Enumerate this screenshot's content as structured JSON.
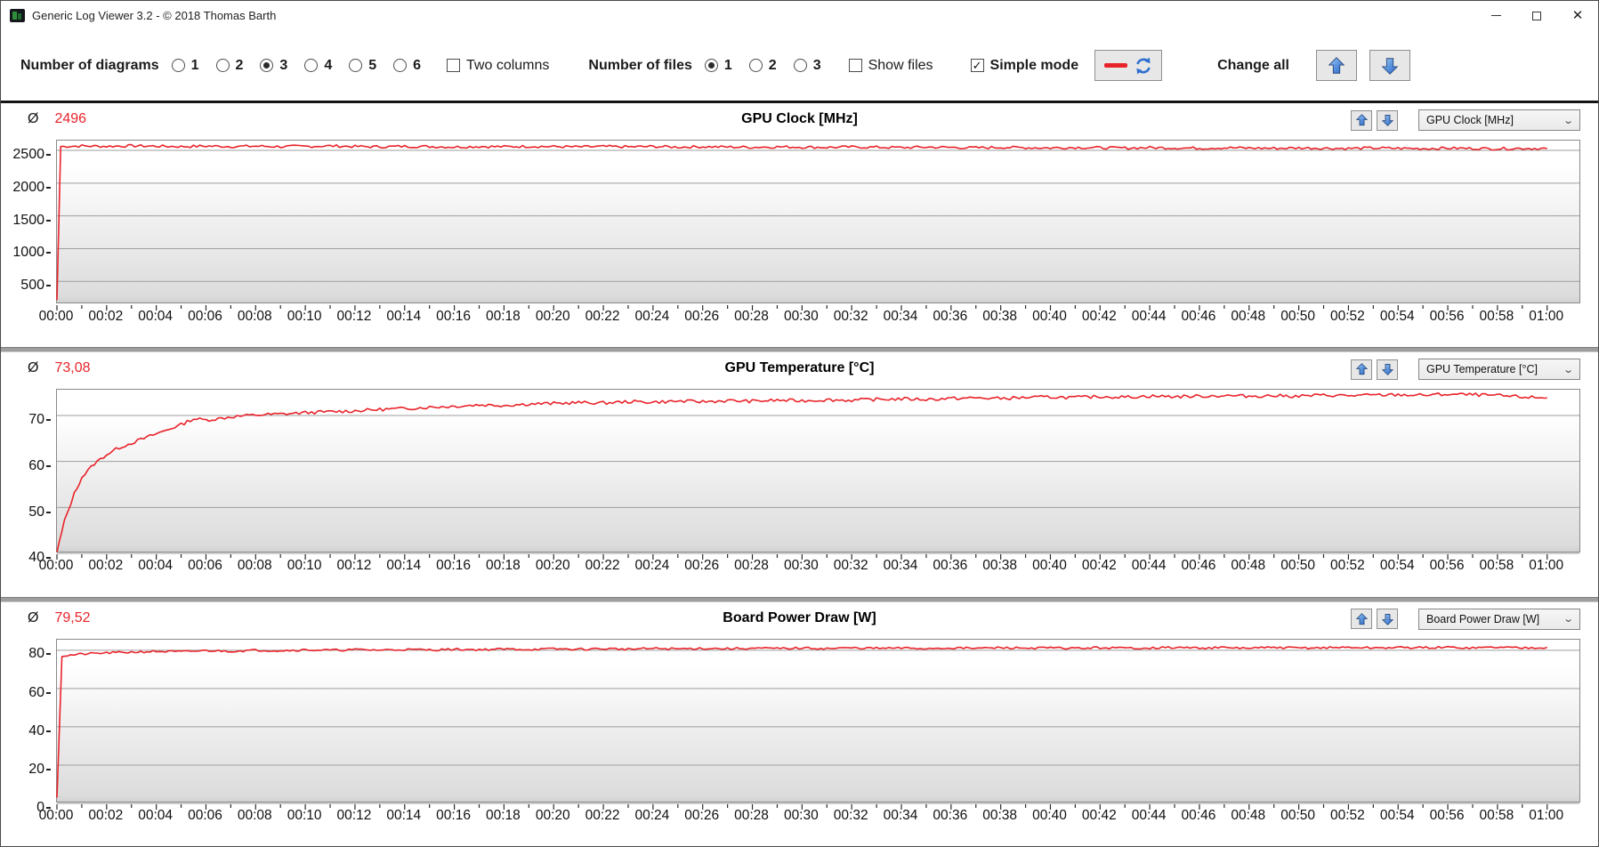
{
  "window": {
    "title": "Generic Log Viewer 3.2 - © 2018 Thomas Barth",
    "controls": [
      "minimize",
      "maximize",
      "close"
    ]
  },
  "toolbar": {
    "diagrams_label": "Number of diagrams",
    "diagram_options": [
      "1",
      "2",
      "3",
      "4",
      "5",
      "6"
    ],
    "diagrams_selected_index": 2,
    "two_columns_label": "Two columns",
    "two_columns_checked": false,
    "files_label": "Number of files",
    "file_options": [
      "1",
      "2",
      "3"
    ],
    "files_selected_index": 0,
    "show_files_label": "Show files",
    "show_files_checked": false,
    "simple_mode_label": "Simple mode",
    "simple_mode_checked": true,
    "change_all_label": "Change all"
  },
  "colors": {
    "line": "#e8232a",
    "avg_value": "#e8232a",
    "grid": "#9e9e9e",
    "arrow_blue_light": "#90c0f0",
    "arrow_blue_dark": "#2e6bcc",
    "arrow_outline": "#27497e",
    "refresh_blue": "#2f6fd0"
  },
  "time_axis": {
    "labels": [
      "00:00",
      "00:02",
      "00:04",
      "00:06",
      "00:08",
      "00:10",
      "00:12",
      "00:14",
      "00:16",
      "00:18",
      "00:20",
      "00:22",
      "00:24",
      "00:26",
      "00:28",
      "00:30",
      "00:32",
      "00:34",
      "00:36",
      "00:38",
      "00:40",
      "00:42",
      "00:44",
      "00:46",
      "00:48",
      "00:50",
      "00:52",
      "00:54",
      "00:56",
      "00:58",
      "01:00"
    ],
    "label_step_minutes": 2,
    "minor_tick_minutes": 1,
    "xlim": [
      0,
      61.3
    ]
  },
  "charts": [
    {
      "type": "line",
      "title": "GPU Clock [MHz]",
      "avg_label": "Ø",
      "avg_value": "2496",
      "dropdown_value": "GPU Clock [MHz]",
      "ylim": [
        150,
        2650
      ],
      "yticks": [
        500,
        1000,
        1500,
        2000,
        2500
      ],
      "noise_amp": 20,
      "seed": 7,
      "series": [
        [
          0,
          215
        ],
        [
          0.15,
          2560
        ],
        [
          1,
          2568
        ],
        [
          2,
          2562
        ],
        [
          3,
          2570
        ],
        [
          4,
          2565
        ],
        [
          5,
          2558
        ],
        [
          6,
          2566
        ],
        [
          7,
          2560
        ],
        [
          8,
          2565
        ],
        [
          9,
          2558
        ],
        [
          10,
          2562
        ],
        [
          11,
          2568
        ],
        [
          12,
          2560
        ],
        [
          13,
          2555
        ],
        [
          14,
          2562
        ],
        [
          15,
          2558
        ],
        [
          16,
          2552
        ],
        [
          17,
          2560
        ],
        [
          18,
          2556
        ],
        [
          19,
          2562
        ],
        [
          20,
          2558
        ],
        [
          21,
          2553
        ],
        [
          22,
          2559
        ],
        [
          23,
          2554
        ],
        [
          24,
          2560
        ],
        [
          25,
          2550
        ],
        [
          26,
          2556
        ],
        [
          27,
          2552
        ],
        [
          28,
          2548
        ],
        [
          29,
          2554
        ],
        [
          30,
          2550
        ],
        [
          31,
          2546
        ],
        [
          32,
          2552
        ],
        [
          33,
          2548
        ],
        [
          34,
          2543
        ],
        [
          35,
          2550
        ],
        [
          36,
          2545
        ],
        [
          37,
          2540
        ],
        [
          38,
          2547
        ],
        [
          39,
          2542
        ],
        [
          40,
          2538
        ],
        [
          41,
          2545
        ],
        [
          42,
          2540
        ],
        [
          43,
          2536
        ],
        [
          44,
          2542
        ],
        [
          45,
          2538
        ],
        [
          46,
          2534
        ],
        [
          47,
          2540
        ],
        [
          48,
          2536
        ],
        [
          49,
          2532
        ],
        [
          50,
          2538
        ],
        [
          51,
          2534
        ],
        [
          52,
          2530
        ],
        [
          53,
          2536
        ],
        [
          54,
          2532
        ],
        [
          55,
          2528
        ],
        [
          56,
          2534
        ],
        [
          57,
          2530
        ],
        [
          58,
          2526
        ],
        [
          59,
          2532
        ],
        [
          60,
          2528
        ]
      ]
    },
    {
      "type": "line",
      "title": "GPU Temperature [°C]",
      "avg_label": "Ø",
      "avg_value": "73,08",
      "dropdown_value": "GPU Temperature [°C]",
      "ylim": [
        40,
        75.6
      ],
      "yticks": [
        40,
        50,
        60,
        70
      ],
      "noise_amp": 0.35,
      "seed": 13,
      "series": [
        [
          0,
          40.3
        ],
        [
          0.3,
          47
        ],
        [
          0.7,
          53
        ],
        [
          1,
          56.5
        ],
        [
          1.5,
          59.5
        ],
        [
          2,
          61.5
        ],
        [
          2.5,
          63
        ],
        [
          3,
          64
        ],
        [
          3.5,
          65
        ],
        [
          4,
          66
        ],
        [
          4.5,
          67
        ],
        [
          5,
          68
        ],
        [
          5.5,
          69.3
        ],
        [
          6,
          69
        ],
        [
          6.5,
          69.3
        ],
        [
          7,
          69.7
        ],
        [
          7.5,
          69.9
        ],
        [
          8,
          70.1
        ],
        [
          9,
          70.3
        ],
        [
          10,
          70.6
        ],
        [
          11,
          70.8
        ],
        [
          12,
          71
        ],
        [
          13,
          71.3
        ],
        [
          14,
          71.5
        ],
        [
          15,
          71.8
        ],
        [
          16,
          72
        ],
        [
          17,
          72.3
        ],
        [
          18,
          72.2
        ],
        [
          19,
          72.5
        ],
        [
          20,
          72.6
        ],
        [
          21,
          72.8
        ],
        [
          22,
          72.7
        ],
        [
          23,
          73
        ],
        [
          24,
          72.9
        ],
        [
          25,
          73.1
        ],
        [
          26,
          73
        ],
        [
          27,
          73.2
        ],
        [
          28,
          73.1
        ],
        [
          29,
          73.3
        ],
        [
          30,
          73.2
        ],
        [
          31,
          73.4
        ],
        [
          32,
          73.3
        ],
        [
          33,
          73.5
        ],
        [
          34,
          73.6
        ],
        [
          35,
          73.5
        ],
        [
          36,
          73.7
        ],
        [
          37,
          73.8
        ],
        [
          38,
          73.7
        ],
        [
          39,
          73.9
        ],
        [
          40,
          74
        ],
        [
          41,
          73.9
        ],
        [
          42,
          74.1
        ],
        [
          43,
          74
        ],
        [
          44,
          74.2
        ],
        [
          45,
          74.1
        ],
        [
          46,
          74.2
        ],
        [
          47,
          74.3
        ],
        [
          48,
          74.2
        ],
        [
          49,
          74.3
        ],
        [
          50,
          74.2
        ],
        [
          51,
          74.4
        ],
        [
          52,
          74.3
        ],
        [
          53,
          74.4
        ],
        [
          54,
          74.5
        ],
        [
          55,
          74.4
        ],
        [
          56,
          74.6
        ],
        [
          57,
          74.5
        ],
        [
          58,
          74.3
        ],
        [
          59,
          74
        ],
        [
          60,
          73.8
        ]
      ]
    },
    {
      "type": "line",
      "title": "Board Power Draw [W]",
      "avg_label": "Ø",
      "avg_value": "79,52",
      "dropdown_value": "Board Power Draw [W]",
      "ylim": [
        0,
        85.5
      ],
      "yticks": [
        0,
        20,
        40,
        60,
        80
      ],
      "noise_amp": 0.55,
      "seed": 21,
      "series": [
        [
          0,
          3
        ],
        [
          0.2,
          77
        ],
        [
          1,
          78
        ],
        [
          2,
          78.6
        ],
        [
          3,
          79
        ],
        [
          4,
          79.4
        ],
        [
          5,
          79.2
        ],
        [
          6,
          79.8
        ],
        [
          7,
          79.5
        ],
        [
          8,
          80
        ],
        [
          9,
          79.8
        ],
        [
          10,
          80.2
        ],
        [
          11,
          80
        ],
        [
          12,
          80.3
        ],
        [
          13,
          80.1
        ],
        [
          14,
          80.4
        ],
        [
          15,
          80.2
        ],
        [
          16,
          80.5
        ],
        [
          17,
          80.3
        ],
        [
          18,
          80.6
        ],
        [
          19,
          80.4
        ],
        [
          20,
          80.7
        ],
        [
          21,
          80.5
        ],
        [
          22,
          80.8
        ],
        [
          23,
          80.6
        ],
        [
          24,
          80.9
        ],
        [
          25,
          80.7
        ],
        [
          26,
          81
        ],
        [
          27,
          80.8
        ],
        [
          28,
          81
        ],
        [
          29,
          80.9
        ],
        [
          30,
          81.1
        ],
        [
          31,
          80.9
        ],
        [
          32,
          81.2
        ],
        [
          33,
          81
        ],
        [
          34,
          81.1
        ],
        [
          35,
          80.9
        ],
        [
          36,
          81.2
        ],
        [
          37,
          81
        ],
        [
          38,
          81.3
        ],
        [
          39,
          81.1
        ],
        [
          40,
          81.2
        ],
        [
          41,
          81
        ],
        [
          42,
          81.3
        ],
        [
          43,
          81.1
        ],
        [
          44,
          81.2
        ],
        [
          45,
          81.4
        ],
        [
          46,
          81.2
        ],
        [
          47,
          81.3
        ],
        [
          48,
          81.1
        ],
        [
          49,
          81.4
        ],
        [
          50,
          81.2
        ],
        [
          51,
          81.3
        ],
        [
          52,
          81.5
        ],
        [
          53,
          81.2
        ],
        [
          54,
          81.4
        ],
        [
          55,
          81.3
        ],
        [
          56,
          81.5
        ],
        [
          57,
          81.2
        ],
        [
          58,
          81.6
        ],
        [
          59,
          81.3
        ],
        [
          60,
          81.5
        ]
      ]
    }
  ]
}
